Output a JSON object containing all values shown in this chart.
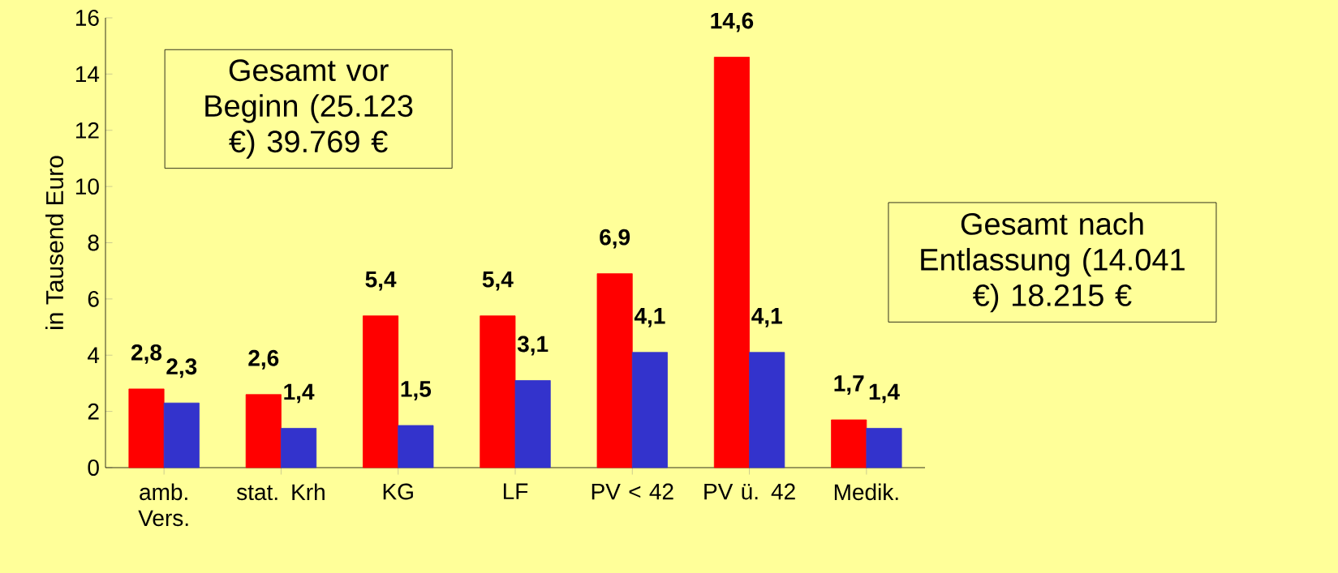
{
  "chart_data": {
    "type": "bar",
    "ylabel": "in Tausend Euro",
    "categories": [
      "amb. Vers.",
      "stat. Krh",
      "KG",
      "LF",
      "PV < 42",
      "PV ü. 42",
      "Medik."
    ],
    "series": [
      {
        "color": "#ff0000",
        "values": [
          2.8,
          2.6,
          5.4,
          5.4,
          6.9,
          14.6,
          1.7
        ],
        "value_labels": [
          "2,8",
          "2,6",
          "5,4",
          "5,4",
          "6,9",
          "14,6",
          "1,7"
        ]
      },
      {
        "color": "#3333cc",
        "values": [
          2.3,
          1.4,
          1.5,
          3.1,
          4.1,
          4.1,
          1.4
        ],
        "value_labels": [
          "2,3",
          "1,4",
          "1,5",
          "3,1",
          "4,1",
          "4,1",
          "1,4"
        ]
      }
    ],
    "ylim": [
      0,
      16
    ],
    "yticks": [
      0,
      2,
      4,
      6,
      8,
      10,
      12,
      14,
      16
    ],
    "annotations": [
      "Gesamt vor Beginn (25.123 €) 39.769 €",
      "Gesamt nach Entlassung (14.041 €) 18.215 €"
    ]
  }
}
